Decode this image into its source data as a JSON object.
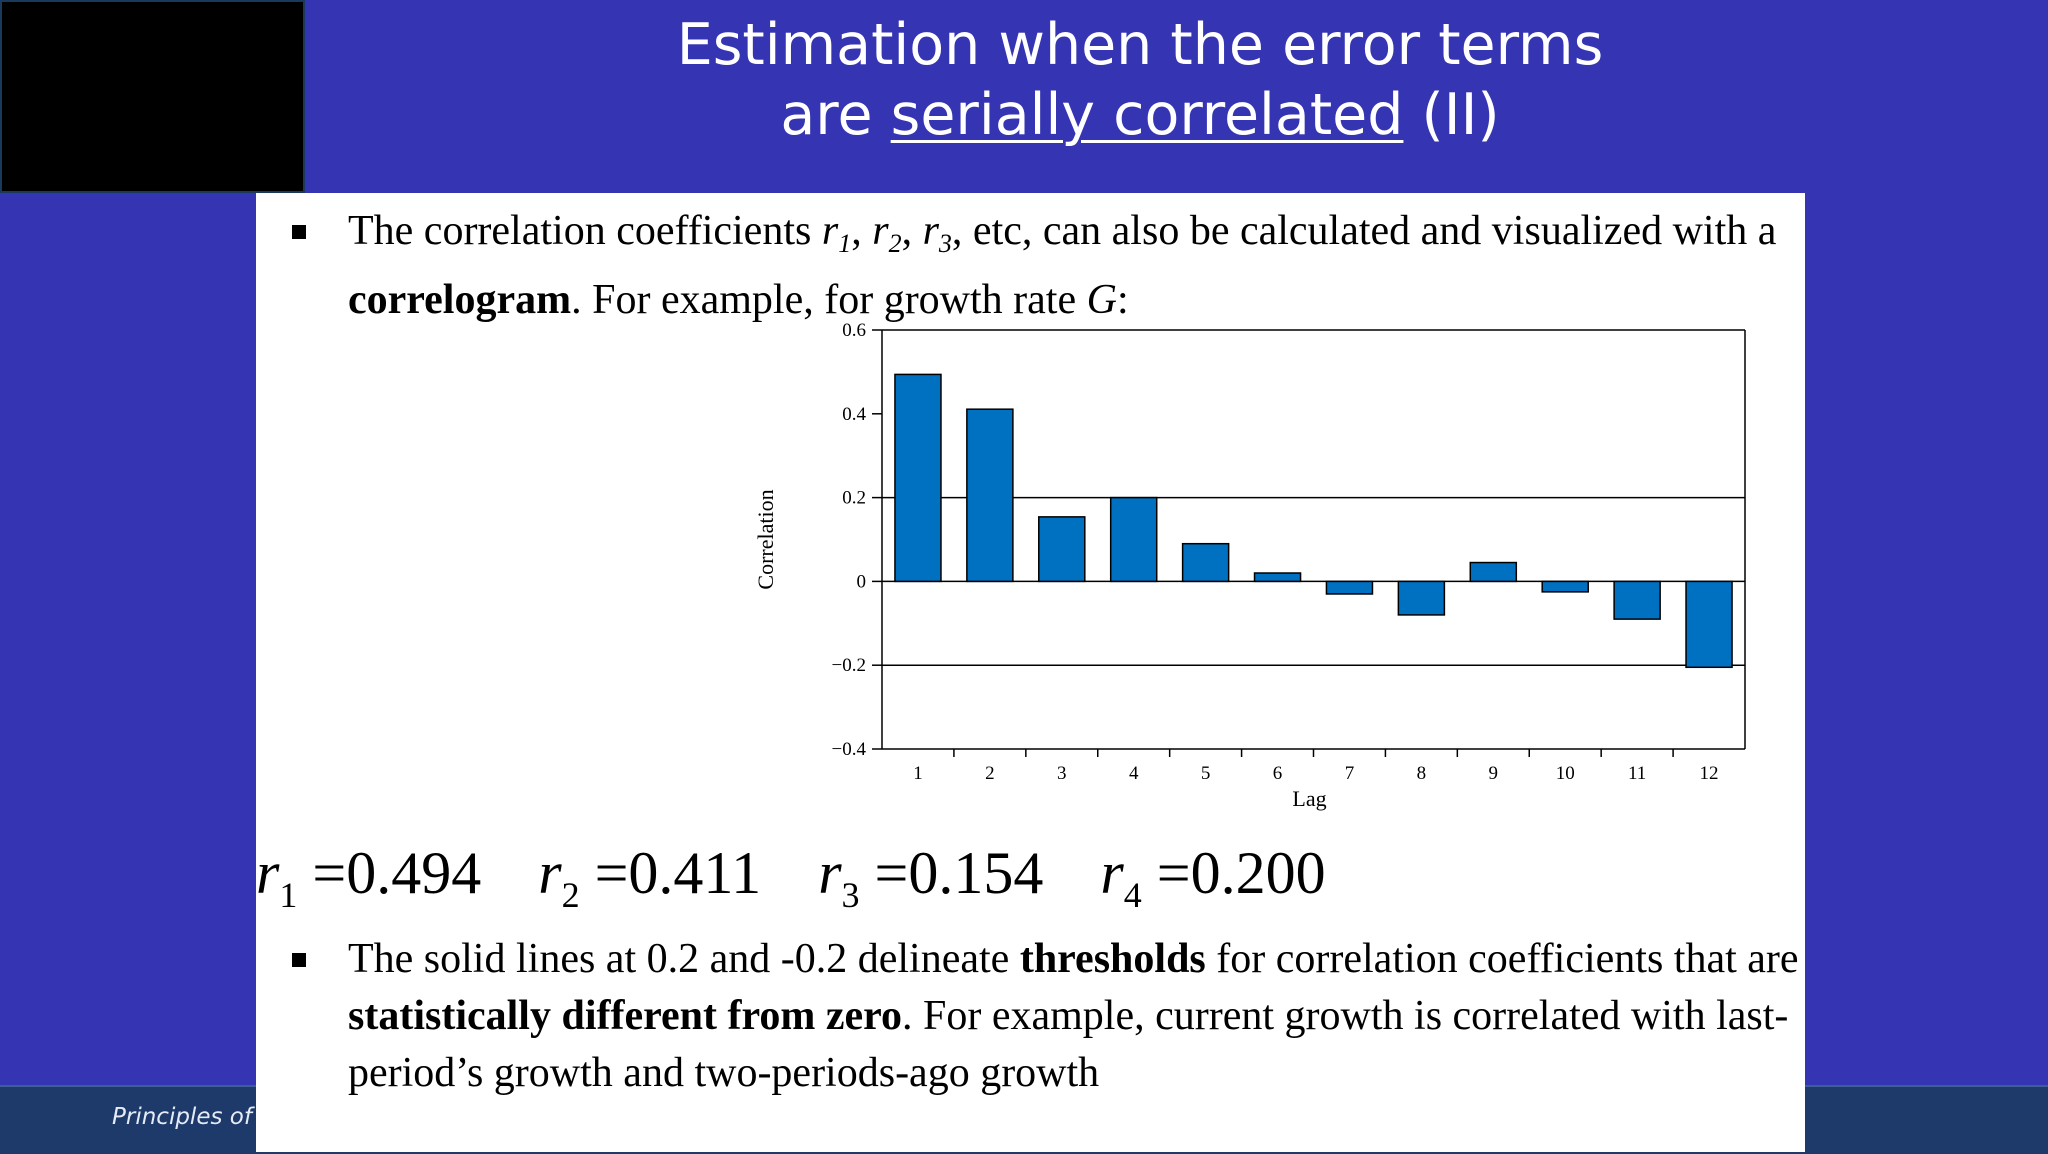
{
  "title": {
    "line1": "Estimation when the error terms",
    "line2_pre": "are ",
    "line2_link": "serially correlated",
    "line2_post": " (II)"
  },
  "footer": {
    "text": "Principles of E"
  },
  "bullet1": {
    "t1": "The correlation coefficients ",
    "r1": "r",
    "s1": "1",
    "c1": ", ",
    "r2": "r",
    "s2": "2",
    "c2": ", ",
    "r3": "r",
    "s3": "3",
    "t2": ", etc, can also be calculated and visualized with a ",
    "bold": "correlogram",
    "t3": ". For example, for growth rate ",
    "g": "G",
    "t4": ":"
  },
  "chart_data": {
    "type": "bar",
    "categories": [
      "1",
      "2",
      "3",
      "4",
      "5",
      "6",
      "7",
      "8",
      "9",
      "10",
      "11",
      "12"
    ],
    "values": [
      0.494,
      0.411,
      0.154,
      0.2,
      0.09,
      0.02,
      -0.03,
      -0.08,
      0.045,
      -0.025,
      -0.09,
      -0.205
    ],
    "xlabel": "Lag",
    "ylabel": "Correlation",
    "ylim": [
      -0.4,
      0.6
    ],
    "yticks": [
      "0.6",
      "0.4",
      "0.2",
      "0",
      "−0.2",
      "−0.4"
    ],
    "threshold_lines": [
      0.2,
      -0.2
    ],
    "bar_color": "#0070c0",
    "grid": false
  },
  "correlations": [
    {
      "r": "r",
      "sub": "1",
      "eq": " =0.494"
    },
    {
      "r": "r",
      "sub": "2",
      "eq": " =0.411"
    },
    {
      "r": "r",
      "sub": "3",
      "eq": " =0.154"
    },
    {
      "r": "r",
      "sub": "4",
      "eq": " =0.200"
    }
  ],
  "bullet2": {
    "t1": "The solid lines at 0.2 and -0.2 delineate ",
    "b1": "thresholds",
    "t2": " for correlation coefficients that are ",
    "b2": "statistically different from zero",
    "t3": ".  For example, current growth is correlated with last-period’s growth and two-periods-ago growth"
  },
  "colors": {
    "background": "#3535b3",
    "footer": "#1e3a6a",
    "content": "#ffffff"
  }
}
